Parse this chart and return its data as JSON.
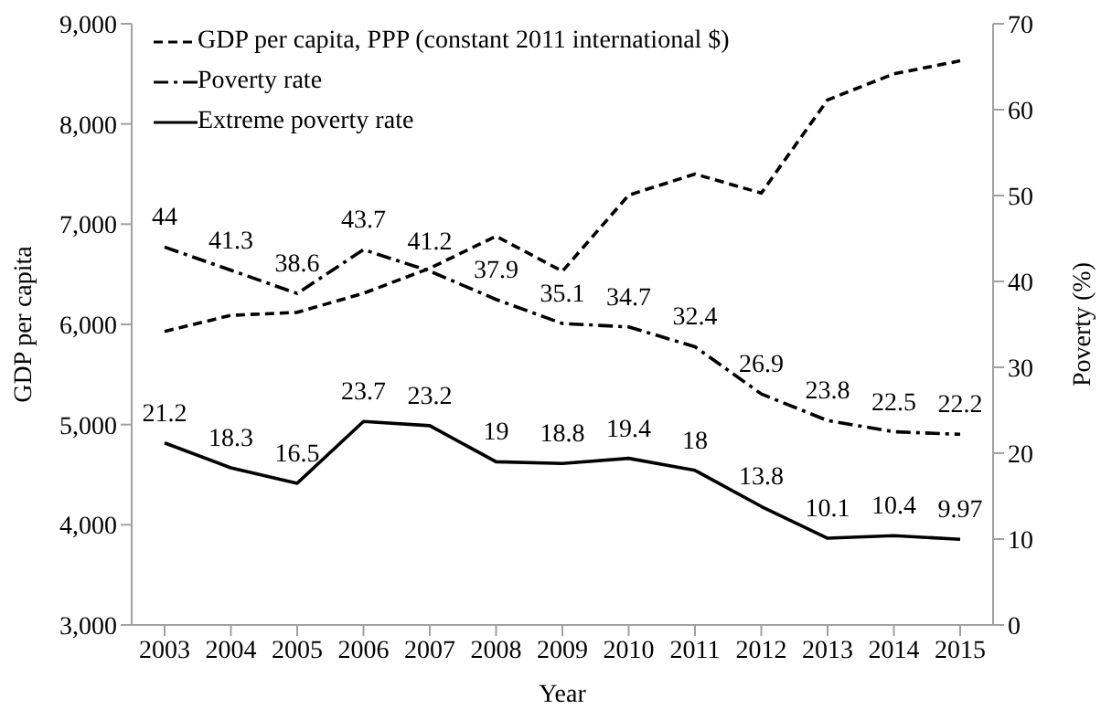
{
  "chart_data": {
    "type": "line",
    "xlabel": "Year",
    "ylabel": "GDP per capita",
    "y2label": "Poverty (%)",
    "categories": [
      "2003",
      "2004",
      "2005",
      "2006",
      "2007",
      "2008",
      "2009",
      "2010",
      "2011",
      "2012",
      "2013",
      "2014",
      "2015"
    ],
    "series": [
      {
        "name": "GDP per capita, PPP (constant 2011 international $)",
        "color": "#000000",
        "line_style": "dashed",
        "values": [
          5930,
          6090,
          6120,
          6310,
          6560,
          6880,
          6530,
          7290,
          7500,
          7310,
          8240,
          8500,
          8630
        ]
      },
      {
        "name": "Poverty rate",
        "color": "#000000",
        "line_style": "dashdot",
        "axis": "y2",
        "values": [
          44,
          41.3,
          38.6,
          43.7,
          41.2,
          37.9,
          35.1,
          34.7,
          32.4,
          26.9,
          23.8,
          22.5,
          22.2
        ],
        "value_labels": [
          "44",
          "41.3",
          "38.6",
          "43.7",
          "41.2",
          "37.9",
          "35.1",
          "34.7",
          "32.4",
          "26.9",
          "23.8",
          "22.5",
          "22.2"
        ]
      },
      {
        "name": "Extreme poverty rate",
        "color": "#000000",
        "line_style": "solid",
        "axis": "y2",
        "values": [
          21.2,
          18.3,
          16.5,
          23.7,
          23.2,
          19,
          18.8,
          19.4,
          18,
          13.8,
          10.1,
          10.4,
          9.97
        ],
        "value_labels": [
          "21.2",
          "18.3",
          "16.5",
          "23.7",
          "23.2",
          "19",
          "18.8",
          "19.4",
          "18",
          "13.8",
          "10.1",
          "10.4",
          "9.97"
        ]
      }
    ],
    "ylim": [
      3000,
      9000
    ],
    "yticks": [
      {
        "value": 3000,
        "label": "3,000"
      },
      {
        "value": 4000,
        "label": "4,000"
      },
      {
        "value": 5000,
        "label": "5,000"
      },
      {
        "value": 6000,
        "label": "6,000"
      },
      {
        "value": 7000,
        "label": "7,000"
      },
      {
        "value": 8000,
        "label": "8,000"
      },
      {
        "value": 9000,
        "label": "9,000"
      }
    ],
    "y2lim": [
      0,
      70
    ],
    "y2ticks": [
      0,
      10,
      20,
      30,
      40,
      50,
      60,
      70
    ],
    "grid": false,
    "legend": "top left",
    "marker": "none"
  }
}
